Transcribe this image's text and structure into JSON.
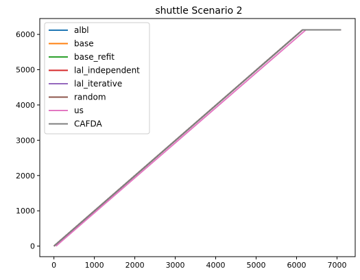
{
  "chart_data": {
    "type": "line",
    "title": "shuttle Scenario 2",
    "xlabel": "",
    "ylabel": "",
    "xlim": [
      -350,
      7450
    ],
    "ylim": [
      -300,
      6450
    ],
    "xticks": [
      0,
      1000,
      2000,
      3000,
      4000,
      5000,
      6000,
      7000
    ],
    "yticks": [
      0,
      1000,
      2000,
      3000,
      4000,
      5000,
      6000
    ],
    "grid": false,
    "legend_position": "top-left",
    "series": [
      {
        "name": "albl",
        "color": "#1f77b4",
        "x": [
          0,
          6150,
          7100
        ],
        "y": [
          0,
          6130,
          6130
        ]
      },
      {
        "name": "base",
        "color": "#ff7f0e",
        "x": [
          0,
          6150,
          7100
        ],
        "y": [
          0,
          6130,
          6130
        ]
      },
      {
        "name": "base_refit",
        "color": "#2ca02c",
        "x": [
          0,
          6150,
          7100
        ],
        "y": [
          0,
          6130,
          6130
        ]
      },
      {
        "name": "lal_independent",
        "color": "#d62728",
        "x": [
          0,
          6150,
          7100
        ],
        "y": [
          0,
          6130,
          6130
        ]
      },
      {
        "name": "lal_iterative",
        "color": "#9467bd",
        "x": [
          0,
          6150,
          7100
        ],
        "y": [
          0,
          6130,
          6130
        ]
      },
      {
        "name": "random",
        "color": "#8c564b",
        "x": [
          0,
          6150,
          7100
        ],
        "y": [
          0,
          6130,
          6130
        ]
      },
      {
        "name": "us",
        "color": "#e377c2",
        "x": [
          50,
          6230,
          7100
        ],
        "y": [
          0,
          6130,
          6130
        ]
      },
      {
        "name": "CAFDA",
        "color": "#7f7f7f",
        "x": [
          0,
          6150,
          7100
        ],
        "y": [
          0,
          6130,
          6130
        ]
      }
    ]
  }
}
